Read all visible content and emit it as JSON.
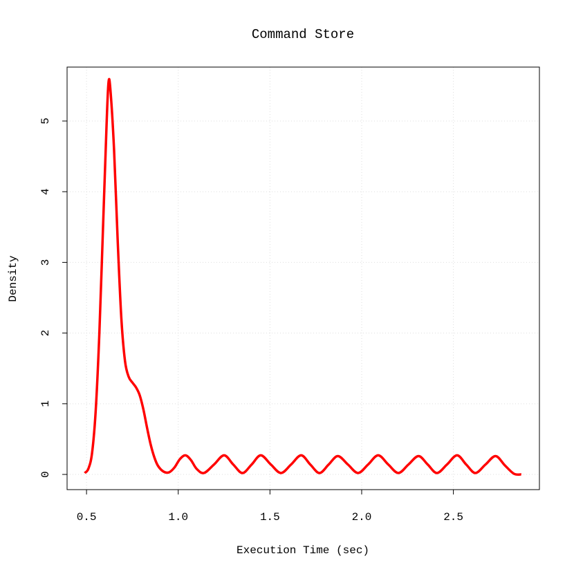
{
  "chart_data": {
    "type": "line",
    "title": "Command Store",
    "x_label": "Execution Time (sec)",
    "y_label": "Density",
    "x": [
      0.49,
      0.51,
      0.53,
      0.55,
      0.57,
      0.59,
      0.61,
      0.62,
      0.63,
      0.65,
      0.67,
      0.69,
      0.71,
      0.73,
      0.75,
      0.77,
      0.79,
      0.81,
      0.83,
      0.85,
      0.87,
      0.89,
      0.92,
      0.95,
      0.98,
      1.01,
      1.04,
      1.07,
      1.1,
      1.14,
      1.195,
      1.25,
      1.3,
      1.35,
      1.4,
      1.45,
      1.505,
      1.56,
      1.615,
      1.67,
      1.72,
      1.77,
      1.82,
      1.87,
      1.925,
      1.98,
      2.035,
      2.09,
      2.145,
      2.2,
      2.255,
      2.31,
      2.36,
      2.41,
      2.465,
      2.52,
      2.57,
      2.62,
      2.675,
      2.73,
      2.78,
      2.83,
      2.87
    ],
    "series": [
      {
        "color": "#ff0000",
        "values": [
          0.02,
          0.08,
          0.3,
          0.9,
          2.0,
          3.5,
          5.0,
          5.55,
          5.45,
          4.6,
          3.3,
          2.2,
          1.6,
          1.38,
          1.3,
          1.23,
          1.12,
          0.92,
          0.66,
          0.42,
          0.24,
          0.12,
          0.04,
          0.03,
          0.1,
          0.22,
          0.27,
          0.2,
          0.08,
          0.02,
          0.14,
          0.27,
          0.14,
          0.02,
          0.14,
          0.27,
          0.14,
          0.02,
          0.14,
          0.27,
          0.14,
          0.02,
          0.14,
          0.26,
          0.14,
          0.02,
          0.14,
          0.27,
          0.14,
          0.02,
          0.14,
          0.26,
          0.14,
          0.02,
          0.14,
          0.27,
          0.14,
          0.02,
          0.14,
          0.26,
          0.13,
          0.01,
          0.0
        ]
      }
    ],
    "xlim": [
      0.394,
      2.969
    ],
    "ylim": [
      -0.215,
      5.763
    ],
    "xticks": [
      {
        "value": 0.5,
        "label": "0.5"
      },
      {
        "value": 1,
        "label": "1.0"
      },
      {
        "value": 1.5,
        "label": "1.5"
      },
      {
        "value": 2,
        "label": "2.0"
      },
      {
        "value": 2.5,
        "label": "2.5"
      }
    ],
    "yticks": [
      0,
      1,
      2,
      3,
      4,
      5
    ],
    "grid": true
  }
}
